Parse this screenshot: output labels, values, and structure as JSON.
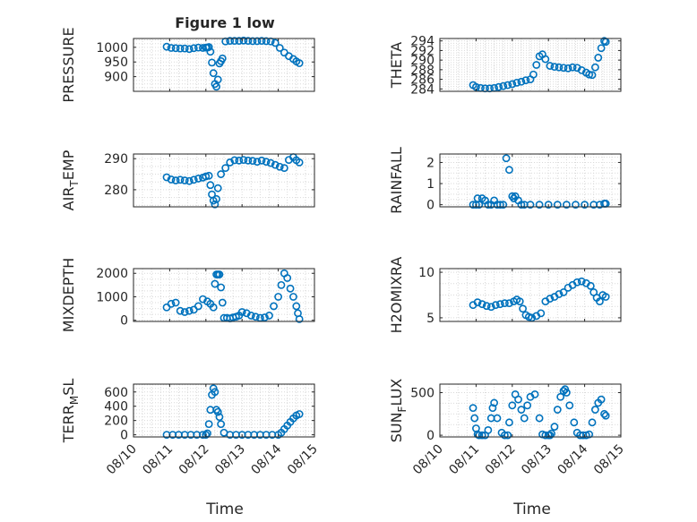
{
  "figure": {
    "title": "Figure 1 low",
    "xlabel": "Time"
  },
  "style": {
    "marker_color": "#0072bd",
    "axis_color": "#262626",
    "grid_color": "#d9d9d9"
  },
  "chart_data": [
    {
      "type": "scatter",
      "name": "pressure",
      "ylabel": "PRESSURE",
      "title": "Figure 1 low",
      "ylim": [
        850,
        1030
      ],
      "yticks": [
        900,
        950,
        1000
      ],
      "ytick_labels": [
        "900",
        "950",
        "1000"
      ],
      "x": [
        "08/10 22:00",
        "08/11 01:00",
        "08/11 04:00",
        "08/11 07:00",
        "08/11 10:00",
        "08/11 13:00",
        "08/11 16:00",
        "08/11 19:00",
        "08/11 22:00",
        "08/12 00:00",
        "08/12 01:00",
        "08/12 02:00",
        "08/12 03:00",
        "08/12 04:00",
        "08/12 05:00",
        "08/12 06:00",
        "08/12 07:00",
        "08/12 08:00",
        "08/12 09:00",
        "08/12 10:00",
        "08/12 11:00",
        "08/12 13:00",
        "08/12 16:00",
        "08/12 19:00",
        "08/12 22:00",
        "08/13 01:00",
        "08/13 04:00",
        "08/13 07:00",
        "08/13 10:00",
        "08/13 13:00",
        "08/13 16:00",
        "08/13 19:00",
        "08/13 22:00",
        "08/14 01:00",
        "08/14 04:00",
        "08/14 07:00",
        "08/14 10:00",
        "08/14 12:00",
        "08/14 14:00"
      ],
      "y": [
        1002,
        998,
        997,
        996,
        996,
        994,
        997,
        999,
        998,
        999,
        999,
        1001,
        985,
        948,
        912,
        875,
        866,
        890,
        945,
        953,
        962,
        1020,
        1022,
        1022,
        1022,
        1023,
        1022,
        1021,
        1021,
        1022,
        1021,
        1020,
        1015,
        998,
        982,
        970,
        960,
        952,
        946
      ]
    },
    {
      "type": "scatter",
      "name": "theta",
      "ylabel": "THETA",
      "ylim": [
        283.5,
        294.5
      ],
      "yticks": [
        284,
        286,
        288,
        290,
        292,
        294
      ],
      "ytick_labels": [
        "284",
        "286",
        "288",
        "290",
        "292",
        "294"
      ],
      "x": [
        "08/10 22:00",
        "08/11 00:00",
        "08/11 03:00",
        "08/11 06:00",
        "08/11 09:00",
        "08/11 12:00",
        "08/11 15:00",
        "08/11 18:00",
        "08/11 21:00",
        "08/12 00:00",
        "08/12 03:00",
        "08/12 06:00",
        "08/12 09:00",
        "08/12 12:00",
        "08/12 14:00",
        "08/12 16:00",
        "08/12 18:00",
        "08/12 20:00",
        "08/12 22:00",
        "08/13 01:00",
        "08/13 04:00",
        "08/13 07:00",
        "08/13 10:00",
        "08/13 13:00",
        "08/13 16:00",
        "08/13 19:00",
        "08/13 22:00",
        "08/14 01:00",
        "08/14 03:00",
        "08/14 05:00",
        "08/14 07:00",
        "08/14 09:00",
        "08/14 11:00",
        "08/14 13:00",
        "08/14 14:00"
      ],
      "y": [
        284.8,
        284.4,
        284.2,
        284.1,
        284.1,
        284.2,
        284.4,
        284.6,
        284.8,
        285.0,
        285.3,
        285.5,
        285.8,
        286.0,
        287.0,
        289.0,
        290.8,
        291.2,
        290.2,
        288.8,
        288.6,
        288.5,
        288.4,
        288.3,
        288.5,
        288.4,
        287.9,
        287.4,
        287.0,
        286.9,
        288.5,
        290.5,
        292.5,
        294.0,
        293.8
      ]
    },
    {
      "type": "scatter",
      "name": "air_temp",
      "ylabel": "AIR_TEMP",
      "ylim": [
        274.5,
        291.5
      ],
      "yticks": [
        280,
        290
      ],
      "ytick_labels": [
        "280",
        "290"
      ],
      "x": [
        "08/10 22:00",
        "08/11 01:00",
        "08/11 04:00",
        "08/11 07:00",
        "08/11 10:00",
        "08/11 13:00",
        "08/11 16:00",
        "08/11 19:00",
        "08/11 22:00",
        "08/12 00:00",
        "08/12 02:00",
        "08/12 03:00",
        "08/12 04:00",
        "08/12 05:00",
        "08/12 06:00",
        "08/12 07:00",
        "08/12 08:00",
        "08/12 10:00",
        "08/12 13:00",
        "08/12 16:00",
        "08/12 19:00",
        "08/12 22:00",
        "08/13 01:00",
        "08/13 04:00",
        "08/13 07:00",
        "08/13 10:00",
        "08/13 13:00",
        "08/13 16:00",
        "08/13 19:00",
        "08/13 22:00",
        "08/14 01:00",
        "08/14 04:00",
        "08/14 07:00",
        "08/14 10:00",
        "08/14 12:00",
        "08/14 14:00"
      ],
      "y": [
        284.0,
        283.3,
        283.0,
        283.2,
        283.0,
        282.8,
        283.2,
        283.6,
        283.9,
        284.3,
        284.5,
        281.5,
        278.5,
        276.5,
        275.3,
        277.0,
        280.5,
        285.0,
        287.0,
        288.8,
        289.5,
        289.4,
        289.6,
        289.4,
        289.3,
        289.0,
        289.4,
        289.0,
        288.6,
        288.0,
        287.4,
        287.0,
        289.6,
        290.5,
        289.5,
        288.8
      ]
    },
    {
      "type": "scatter",
      "name": "rainfall",
      "ylabel": "RAINFALL",
      "ylim": [
        -0.1,
        2.4
      ],
      "yticks": [
        0,
        1,
        2
      ],
      "ytick_labels": [
        "0",
        "1",
        "2"
      ],
      "x": [
        "08/10 22:00",
        "08/11 00:00",
        "08/11 01:00",
        "08/11 02:00",
        "08/11 04:00",
        "08/11 06:00",
        "08/11 08:00",
        "08/11 10:00",
        "08/11 12:00",
        "08/11 14:00",
        "08/11 16:00",
        "08/11 18:00",
        "08/11 20:00",
        "08/11 22:00",
        "08/12 00:00",
        "08/12 01:00",
        "08/12 02:00",
        "08/12 04:00",
        "08/12 06:00",
        "08/12 08:00",
        "08/12 12:00",
        "08/12 18:00",
        "08/13 00:00",
        "08/13 06:00",
        "08/13 12:00",
        "08/13 18:00",
        "08/14 00:00",
        "08/14 06:00",
        "08/14 10:00",
        "08/14 13:00",
        "08/14 14:00"
      ],
      "y": [
        0,
        0,
        0.3,
        0,
        0.3,
        0.2,
        0,
        0,
        0.2,
        0,
        0,
        0,
        2.2,
        1.65,
        0.4,
        0.3,
        0.4,
        0.2,
        0,
        0,
        0,
        0,
        0,
        0,
        0,
        0,
        0,
        0,
        0,
        0.05,
        0.05
      ]
    },
    {
      "type": "scatter",
      "name": "mixdepth",
      "ylabel": "MIXDEPTH",
      "ylim": [
        -50,
        2200
      ],
      "yticks": [
        0,
        1000,
        2000
      ],
      "ytick_labels": [
        "0",
        "1000",
        "2000"
      ],
      "x": [
        "08/10 22:00",
        "08/11 01:00",
        "08/11 04:00",
        "08/11 07:00",
        "08/11 10:00",
        "08/11 13:00",
        "08/11 16:00",
        "08/11 19:00",
        "08/11 22:00",
        "08/12 01:00",
        "08/12 03:00",
        "08/12 05:00",
        "08/12 06:00",
        "08/12 07:00",
        "08/12 08:00",
        "08/12 09:00",
        "08/12 10:00",
        "08/12 11:00",
        "08/12 12:00",
        "08/12 14:00",
        "08/12 16:00",
        "08/12 18:00",
        "08/12 20:00",
        "08/12 22:00",
        "08/13 00:00",
        "08/13 03:00",
        "08/13 06:00",
        "08/13 09:00",
        "08/13 12:00",
        "08/13 15:00",
        "08/13 18:00",
        "08/13 21:00",
        "08/14 00:00",
        "08/14 02:00",
        "08/14 04:00",
        "08/14 06:00",
        "08/14 08:00",
        "08/14 10:00",
        "08/14 12:00",
        "08/14 13:00",
        "08/14 14:00"
      ],
      "y": [
        550,
        700,
        750,
        400,
        350,
        400,
        450,
        600,
        900,
        800,
        700,
        550,
        1550,
        1950,
        1950,
        1950,
        1400,
        750,
        100,
        100,
        80,
        120,
        150,
        200,
        350,
        300,
        200,
        150,
        100,
        120,
        200,
        600,
        1000,
        1500,
        2000,
        1800,
        1350,
        1000,
        600,
        300,
        50
      ]
    },
    {
      "type": "scatter",
      "name": "h2omixra",
      "ylabel": "H2OMIXRA",
      "ylim": [
        4.6,
        10.4
      ],
      "yticks": [
        5,
        10
      ],
      "ytick_labels": [
        "5",
        "10"
      ],
      "x": [
        "08/10 22:00",
        "08/11 01:00",
        "08/11 04:00",
        "08/11 07:00",
        "08/11 10:00",
        "08/11 13:00",
        "08/11 16:00",
        "08/11 19:00",
        "08/11 22:00",
        "08/12 01:00",
        "08/12 03:00",
        "08/12 05:00",
        "08/12 07:00",
        "08/12 09:00",
        "08/12 11:00",
        "08/12 13:00",
        "08/12 16:00",
        "08/12 19:00",
        "08/12 22:00",
        "08/13 01:00",
        "08/13 04:00",
        "08/13 07:00",
        "08/13 10:00",
        "08/13 13:00",
        "08/13 16:00",
        "08/13 19:00",
        "08/13 22:00",
        "08/14 01:00",
        "08/14 04:00",
        "08/14 06:00",
        "08/14 08:00",
        "08/14 10:00",
        "08/14 12:00",
        "08/14 14:00"
      ],
      "y": [
        6.4,
        6.7,
        6.5,
        6.3,
        6.2,
        6.4,
        6.5,
        6.6,
        6.6,
        6.8,
        7.0,
        6.8,
        6.0,
        5.3,
        5.1,
        5.0,
        5.2,
        5.5,
        6.8,
        7.1,
        7.3,
        7.6,
        7.8,
        8.3,
        8.6,
        8.9,
        9.0,
        8.8,
        8.5,
        7.8,
        7.2,
        6.8,
        7.5,
        7.3
      ]
    },
    {
      "type": "scatter",
      "name": "terr_msl",
      "ylabel": "TERR_MSL",
      "ylim": [
        -30,
        710
      ],
      "yticks": [
        0,
        200,
        400,
        600
      ],
      "ytick_labels": [
        "0",
        "200",
        "400",
        "600"
      ],
      "x": [
        "08/10 22:00",
        "08/11 02:00",
        "08/11 06:00",
        "08/11 10:00",
        "08/11 14:00",
        "08/11 18:00",
        "08/11 22:00",
        "08/12 00:00",
        "08/12 01:00",
        "08/12 02:00",
        "08/12 03:00",
        "08/12 04:00",
        "08/12 05:00",
        "08/12 06:00",
        "08/12 07:00",
        "08/12 08:00",
        "08/12 09:00",
        "08/12 10:00",
        "08/12 12:00",
        "08/12 16:00",
        "08/12 20:00",
        "08/13 00:00",
        "08/13 04:00",
        "08/13 08:00",
        "08/13 12:00",
        "08/13 16:00",
        "08/13 20:00",
        "08/14 00:00",
        "08/14 02:00",
        "08/14 04:00",
        "08/14 06:00",
        "08/14 08:00",
        "08/14 10:00",
        "08/14 12:00",
        "08/14 14:00"
      ],
      "y": [
        0,
        0,
        0,
        0,
        0,
        0,
        0,
        0,
        20,
        150,
        350,
        560,
        650,
        600,
        350,
        320,
        250,
        150,
        30,
        0,
        0,
        0,
        0,
        0,
        0,
        0,
        0,
        0,
        30,
        80,
        130,
        180,
        230,
        270,
        290
      ]
    },
    {
      "type": "scatter",
      "name": "sun_flux",
      "ylabel": "SUN_FLUX",
      "ylim": [
        -20,
        600
      ],
      "yticks": [
        0,
        500
      ],
      "ytick_labels": [
        "0",
        "500"
      ],
      "x": [
        "08/10 22:00",
        "08/10 23:00",
        "08/11 00:00",
        "08/11 01:00",
        "08/11 02:00",
        "08/11 04:00",
        "08/11 06:00",
        "08/11 08:00",
        "08/11 10:00",
        "08/11 11:00",
        "08/11 12:00",
        "08/11 14:00",
        "08/11 17:00",
        "08/11 19:00",
        "08/11 21:00",
        "08/11 22:00",
        "08/12 00:00",
        "08/12 02:00",
        "08/12 04:00",
        "08/12 06:00",
        "08/12 08:00",
        "08/12 10:00",
        "08/12 12:00",
        "08/12 15:00",
        "08/12 18:00",
        "08/12 20:00",
        "08/12 22:00",
        "08/13 00:00",
        "08/13 01:00",
        "08/13 02:00",
        "08/13 04:00",
        "08/13 06:00",
        "08/13 08:00",
        "08/13 10:00",
        "08/13 11:00",
        "08/13 12:00",
        "08/13 14:00",
        "08/13 17:00",
        "08/13 19:00",
        "08/13 21:00",
        "08/13 23:00",
        "08/14 01:00",
        "08/14 03:00",
        "08/14 05:00",
        "08/14 07:00",
        "08/14 09:00",
        "08/14 11:00",
        "08/14 13:00",
        "08/14 14:00"
      ],
      "y": [
        320,
        200,
        80,
        10,
        0,
        0,
        0,
        60,
        200,
        320,
        380,
        200,
        30,
        0,
        0,
        150,
        350,
        480,
        420,
        300,
        200,
        350,
        450,
        480,
        200,
        10,
        0,
        0,
        0,
        20,
        100,
        300,
        450,
        520,
        540,
        500,
        350,
        150,
        30,
        0,
        0,
        0,
        10,
        150,
        300,
        380,
        420,
        250,
        230
      ]
    }
  ],
  "xaxis": {
    "range": [
      "08/10 00:00",
      "08/15 00:00"
    ],
    "ticks": [
      "08/10",
      "08/11",
      "08/12",
      "08/13",
      "08/14",
      "08/15"
    ]
  }
}
